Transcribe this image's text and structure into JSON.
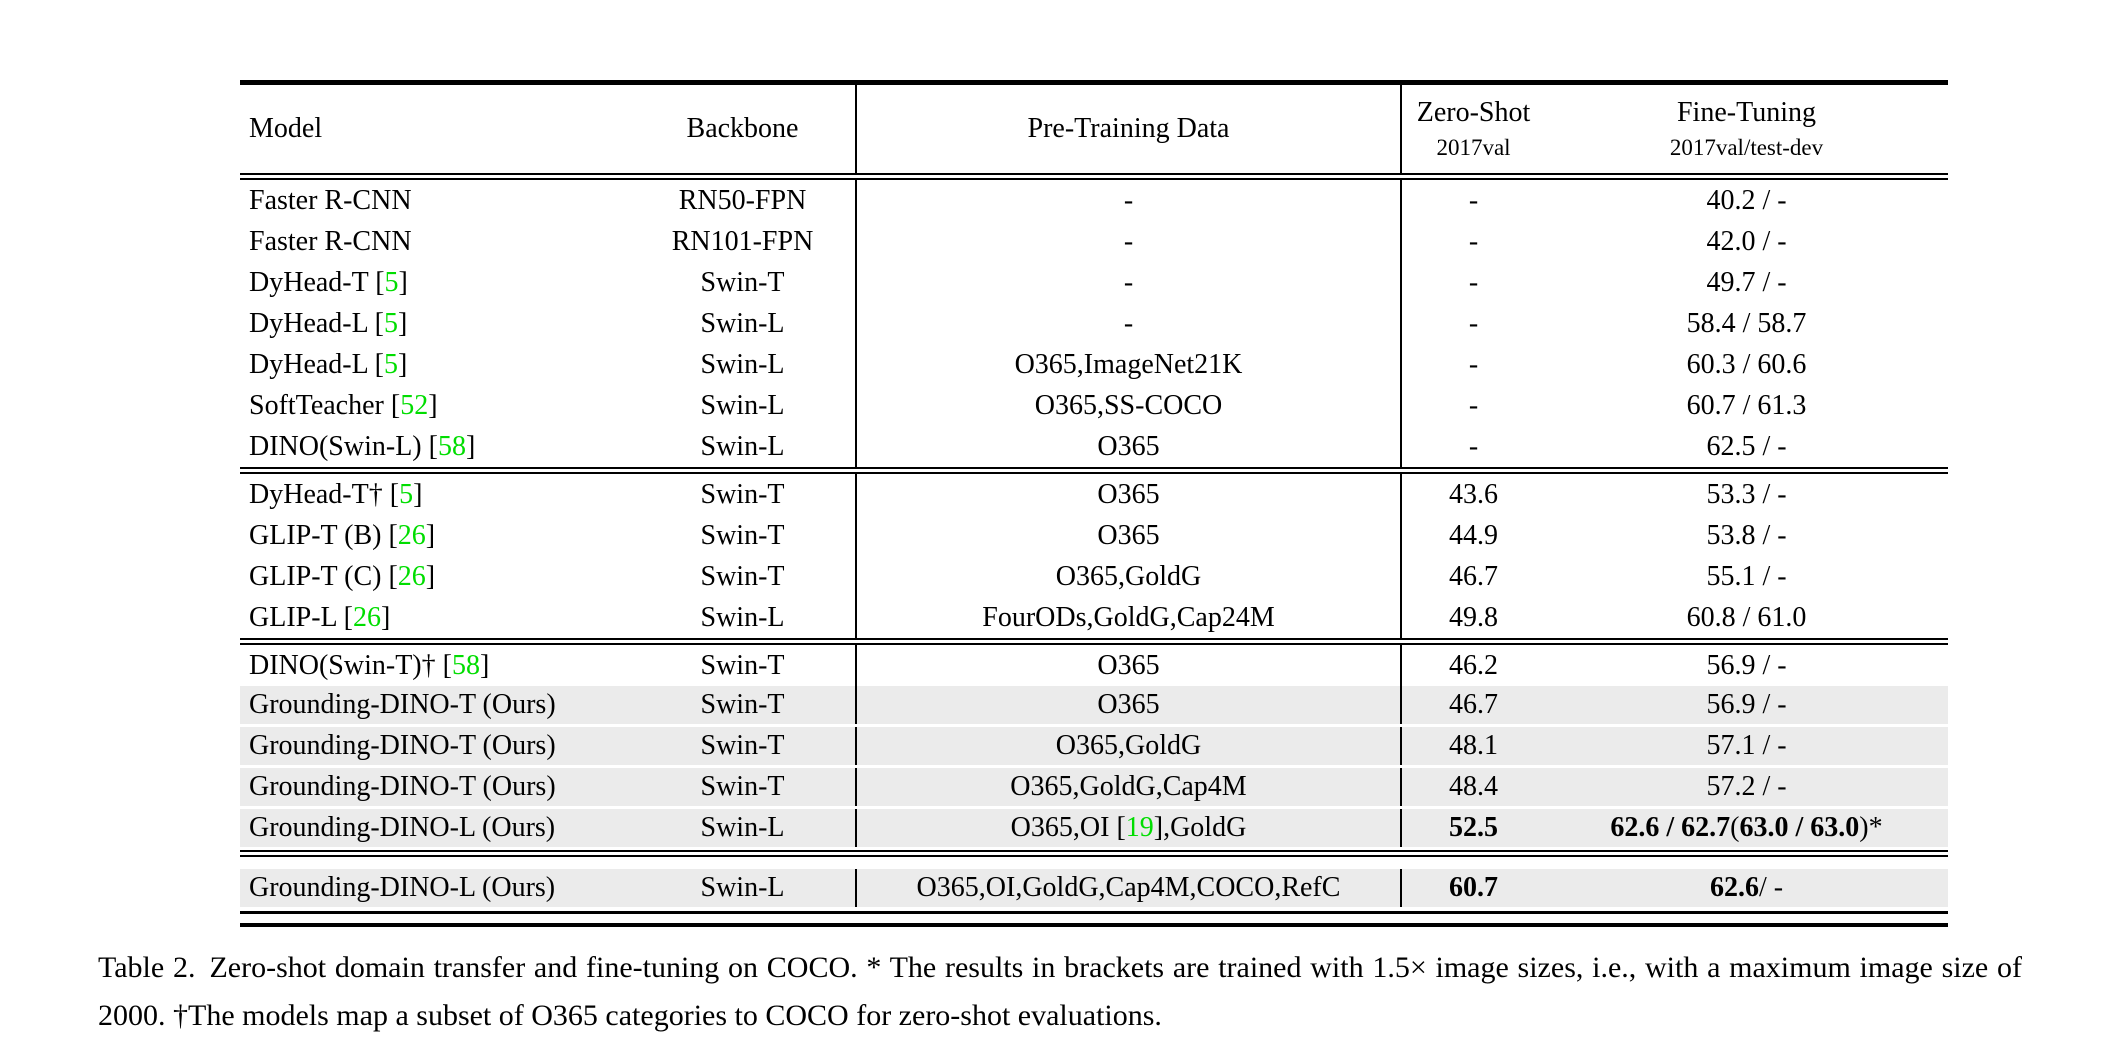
{
  "colors": {
    "cite_green": "#00dd00",
    "row_shade": "#ebebeb",
    "rule": "#000000"
  },
  "table": {
    "header": {
      "model": "Model",
      "backbone": "Backbone",
      "pretrain": "Pre-Training Data",
      "zeroshot_title": "Zero-Shot",
      "zeroshot_sub": "2017val",
      "finetune_title": "Fine-Tuning",
      "finetune_sub": "2017val/test-dev"
    },
    "sections": [
      {
        "rows": [
          {
            "shaded": false,
            "cells": {
              "model": [
                {
                  "t": "Faster R-CNN"
                }
              ],
              "backbone": [
                {
                  "t": "RN50-FPN"
                }
              ],
              "pretrain": [
                {
                  "t": "-"
                }
              ],
              "zeroshot": [
                {
                  "t": "-"
                }
              ],
              "finetune": [
                {
                  "t": "40.2 / -"
                }
              ]
            }
          },
          {
            "shaded": false,
            "cells": {
              "model": [
                {
                  "t": "Faster R-CNN"
                }
              ],
              "backbone": [
                {
                  "t": "RN101-FPN"
                }
              ],
              "pretrain": [
                {
                  "t": "-"
                }
              ],
              "zeroshot": [
                {
                  "t": "-"
                }
              ],
              "finetune": [
                {
                  "t": "42.0 / -"
                }
              ]
            }
          },
          {
            "shaded": false,
            "cells": {
              "model": [
                {
                  "t": "DyHead-T ["
                },
                {
                  "t": "5",
                  "c": true
                },
                {
                  "t": "]"
                }
              ],
              "backbone": [
                {
                  "t": "Swin-T"
                }
              ],
              "pretrain": [
                {
                  "t": "-"
                }
              ],
              "zeroshot": [
                {
                  "t": "-"
                }
              ],
              "finetune": [
                {
                  "t": "49.7 / -"
                }
              ]
            }
          },
          {
            "shaded": false,
            "cells": {
              "model": [
                {
                  "t": "DyHead-L ["
                },
                {
                  "t": "5",
                  "c": true
                },
                {
                  "t": "]"
                }
              ],
              "backbone": [
                {
                  "t": "Swin-L"
                }
              ],
              "pretrain": [
                {
                  "t": "-"
                }
              ],
              "zeroshot": [
                {
                  "t": "-"
                }
              ],
              "finetune": [
                {
                  "t": "58.4 / 58.7"
                }
              ]
            }
          },
          {
            "shaded": false,
            "cells": {
              "model": [
                {
                  "t": "DyHead-L ["
                },
                {
                  "t": "5",
                  "c": true
                },
                {
                  "t": "]"
                }
              ],
              "backbone": [
                {
                  "t": "Swin-L"
                }
              ],
              "pretrain": [
                {
                  "t": "O365,ImageNet21K"
                }
              ],
              "zeroshot": [
                {
                  "t": "-"
                }
              ],
              "finetune": [
                {
                  "t": "60.3 / 60.6"
                }
              ]
            }
          },
          {
            "shaded": false,
            "cells": {
              "model": [
                {
                  "t": "SoftTeacher ["
                },
                {
                  "t": "52",
                  "c": true
                },
                {
                  "t": "]"
                }
              ],
              "backbone": [
                {
                  "t": "Swin-L"
                }
              ],
              "pretrain": [
                {
                  "t": "O365,SS-COCO"
                }
              ],
              "zeroshot": [
                {
                  "t": "-"
                }
              ],
              "finetune": [
                {
                  "t": "60.7 / 61.3"
                }
              ]
            }
          },
          {
            "shaded": false,
            "cells": {
              "model": [
                {
                  "t": "DINO(Swin-L) ["
                },
                {
                  "t": "58",
                  "c": true
                },
                {
                  "t": "]"
                }
              ],
              "backbone": [
                {
                  "t": "Swin-L"
                }
              ],
              "pretrain": [
                {
                  "t": "O365"
                }
              ],
              "zeroshot": [
                {
                  "t": "-"
                }
              ],
              "finetune": [
                {
                  "t": "62.5 / -"
                }
              ]
            }
          }
        ]
      },
      {
        "rows": [
          {
            "shaded": false,
            "cells": {
              "model": [
                {
                  "t": "DyHead-T† ["
                },
                {
                  "t": "5",
                  "c": true
                },
                {
                  "t": "]"
                }
              ],
              "backbone": [
                {
                  "t": "Swin-T"
                }
              ],
              "pretrain": [
                {
                  "t": "O365"
                }
              ],
              "zeroshot": [
                {
                  "t": "43.6"
                }
              ],
              "finetune": [
                {
                  "t": "53.3 / -"
                }
              ]
            }
          },
          {
            "shaded": false,
            "cells": {
              "model": [
                {
                  "t": "GLIP-T (B) ["
                },
                {
                  "t": "26",
                  "c": true
                },
                {
                  "t": "]"
                }
              ],
              "backbone": [
                {
                  "t": "Swin-T"
                }
              ],
              "pretrain": [
                {
                  "t": "O365"
                }
              ],
              "zeroshot": [
                {
                  "t": "44.9"
                }
              ],
              "finetune": [
                {
                  "t": "53.8 / -"
                }
              ]
            }
          },
          {
            "shaded": false,
            "cells": {
              "model": [
                {
                  "t": "GLIP-T (C) ["
                },
                {
                  "t": "26",
                  "c": true
                },
                {
                  "t": "]"
                }
              ],
              "backbone": [
                {
                  "t": "Swin-T"
                }
              ],
              "pretrain": [
                {
                  "t": "O365,GoldG"
                }
              ],
              "zeroshot": [
                {
                  "t": "46.7"
                }
              ],
              "finetune": [
                {
                  "t": "55.1 / -"
                }
              ]
            }
          },
          {
            "shaded": false,
            "cells": {
              "model": [
                {
                  "t": "GLIP-L ["
                },
                {
                  "t": "26",
                  "c": true
                },
                {
                  "t": "]"
                }
              ],
              "backbone": [
                {
                  "t": "Swin-L"
                }
              ],
              "pretrain": [
                {
                  "t": "FourODs,GoldG,Cap24M"
                }
              ],
              "zeroshot": [
                {
                  "t": "49.8"
                }
              ],
              "finetune": [
                {
                  "t": "60.8 / 61.0"
                }
              ]
            }
          }
        ]
      },
      {
        "rows": [
          {
            "shaded": false,
            "cells": {
              "model": [
                {
                  "t": "DINO(Swin-T)† ["
                },
                {
                  "t": "58",
                  "c": true
                },
                {
                  "t": "]"
                }
              ],
              "backbone": [
                {
                  "t": "Swin-T"
                }
              ],
              "pretrain": [
                {
                  "t": "O365"
                }
              ],
              "zeroshot": [
                {
                  "t": "46.2"
                }
              ],
              "finetune": [
                {
                  "t": "56.9 / -"
                }
              ]
            }
          },
          {
            "shaded": true,
            "cells": {
              "model": [
                {
                  "t": "Grounding-DINO-T (Ours)"
                }
              ],
              "backbone": [
                {
                  "t": "Swin-T"
                }
              ],
              "pretrain": [
                {
                  "t": "O365"
                }
              ],
              "zeroshot": [
                {
                  "t": "46.7"
                }
              ],
              "finetune": [
                {
                  "t": "56.9 / -"
                }
              ]
            }
          },
          {
            "shaded": true,
            "cells": {
              "model": [
                {
                  "t": "Grounding-DINO-T (Ours)"
                }
              ],
              "backbone": [
                {
                  "t": "Swin-T"
                }
              ],
              "pretrain": [
                {
                  "t": "O365,GoldG"
                }
              ],
              "zeroshot": [
                {
                  "t": "48.1"
                }
              ],
              "finetune": [
                {
                  "t": "57.1 / -"
                }
              ]
            }
          },
          {
            "shaded": true,
            "cells": {
              "model": [
                {
                  "t": "Grounding-DINO-T (Ours)"
                }
              ],
              "backbone": [
                {
                  "t": "Swin-T"
                }
              ],
              "pretrain": [
                {
                  "t": "O365,GoldG,Cap4M"
                }
              ],
              "zeroshot": [
                {
                  "t": "48.4"
                }
              ],
              "finetune": [
                {
                  "t": "57.2 / -"
                }
              ]
            }
          },
          {
            "shaded": true,
            "cells": {
              "model": [
                {
                  "t": "Grounding-DINO-L (Ours)"
                }
              ],
              "backbone": [
                {
                  "t": "Swin-L"
                }
              ],
              "pretrain": [
                {
                  "t": "O365,OI ["
                },
                {
                  "t": "19",
                  "c": true
                },
                {
                  "t": "],GoldG"
                }
              ],
              "zeroshot": [
                {
                  "t": "52.5",
                  "b": true
                }
              ],
              "finetune": [
                {
                  "t": "62.6 / 62.7 ",
                  "b": true
                },
                {
                  "t": "("
                },
                {
                  "t": "63.0 / 63.0",
                  "b": true
                },
                {
                  "t": ")*"
                }
              ]
            }
          }
        ]
      },
      {
        "rows": [
          {
            "shaded": true,
            "cells": {
              "model": [
                {
                  "t": "Grounding-DINO-L (Ours)"
                }
              ],
              "backbone": [
                {
                  "t": "Swin-L"
                }
              ],
              "pretrain": [
                {
                  "t": "O365,OI,GoldG,Cap4M,COCO,RefC"
                }
              ],
              "zeroshot": [
                {
                  "t": "60.7",
                  "b": true
                }
              ],
              "finetune": [
                {
                  "t": "62.6",
                  "b": true
                },
                {
                  "t": " / -"
                }
              ]
            }
          }
        ]
      }
    ]
  },
  "caption": {
    "label": "Table 2.",
    "text": "Zero-shot domain transfer and fine-tuning on COCO. * The results in brackets are trained with 1.5× image sizes, i.e., with a maximum image size of 2000. †The models map a subset of O365 categories to COCO for zero-shot evaluations."
  }
}
